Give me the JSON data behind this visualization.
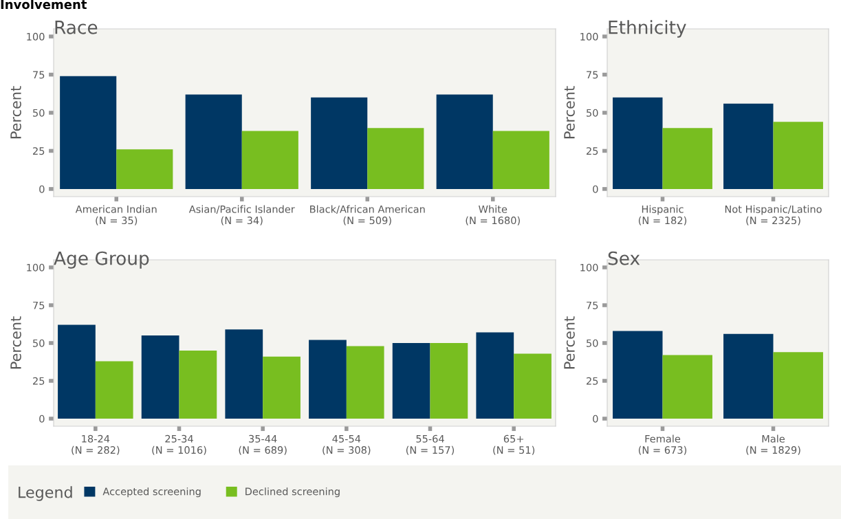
{
  "chart_data": [
    {
      "type": "bar",
      "title": "Race",
      "ylabel": "Percent",
      "annotations": [
        "Involvement"
      ],
      "categories": [
        "American Indian\n(N = 35)",
        "Asian/Pacific Islander\n(N = 34)",
        "Black/African American\n(N = 509)",
        "White\n(N = 1680)"
      ],
      "series": [
        {
          "name": "Accepted screening",
          "color": "#003764",
          "values": [
            74,
            62,
            60,
            62
          ]
        },
        {
          "name": "Declined screening",
          "color": "#78be20",
          "values": [
            26,
            38,
            40,
            38
          ]
        }
      ],
      "ylim": [
        -5,
        105
      ],
      "yticks": [
        0,
        25,
        50,
        75,
        100
      ],
      "legend": "bottom",
      "legend_title": "Legend"
    },
    {
      "type": "bar",
      "title": "Ethnicity",
      "ylabel": "Percent",
      "categories": [
        "Hispanic\n(N = 182)",
        "Not Hispanic/Latino\n(N = 2325)"
      ],
      "series": [
        {
          "color": "#003764",
          "values": [
            60,
            56
          ]
        },
        {
          "color": "#78be20",
          "values": [
            40,
            44
          ]
        }
      ],
      "ylim": [
        -5,
        105
      ],
      "yticks": [
        0,
        25,
        50,
        75,
        100
      ]
    },
    {
      "type": "bar",
      "title": "Age Group",
      "ylabel": "Percent",
      "categories": [
        "18-24\n(N = 282)",
        "25-34\n(N = 1016)",
        "35-44\n(N = 689)",
        "45-54\n(N = 308)",
        "55-64\n(N = 157)",
        "65+\n(N = 51)"
      ],
      "series": [
        {
          "color": "#003764",
          "values": [
            62,
            55,
            59,
            52,
            50,
            57
          ]
        },
        {
          "color": "#78be20",
          "values": [
            38,
            45,
            41,
            48,
            50,
            43
          ]
        }
      ],
      "ylim": [
        -5,
        105
      ],
      "yticks": [
        0,
        25,
        50,
        75,
        100
      ]
    },
    {
      "type": "bar",
      "title": "Sex",
      "ylabel": "Percent",
      "categories": [
        "Female\n(N = 673)",
        "Male\n(N = 1829)"
      ],
      "series": [
        {
          "color": "#003764",
          "values": [
            58,
            56
          ]
        },
        {
          "color": "#78be20",
          "values": [
            42,
            44
          ]
        }
      ],
      "ylim": [
        -5,
        105
      ],
      "yticks": [
        0,
        25,
        50,
        75,
        100
      ]
    }
  ]
}
